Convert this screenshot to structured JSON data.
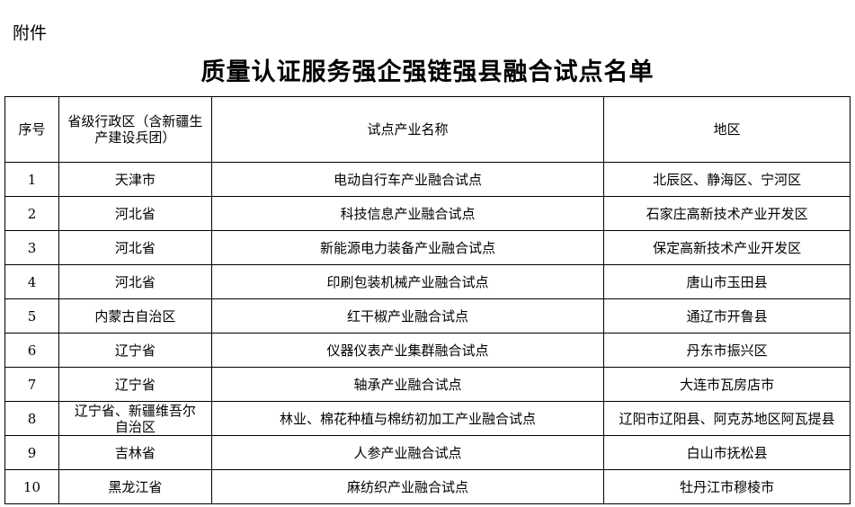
{
  "attachment_label": "附件",
  "title": "质量认证服务强企强链强县融合试点名单",
  "table": {
    "headers": [
      "序号",
      "省级行政区（含新疆生产建设兵团）",
      "试点产业名称",
      "地区"
    ],
    "rows": [
      [
        "1",
        "天津市",
        "电动自行车产业融合试点",
        "北辰区、静海区、宁河区"
      ],
      [
        "2",
        "河北省",
        "科技信息产业融合试点",
        "石家庄高新技术产业开发区"
      ],
      [
        "3",
        "河北省",
        "新能源电力装备产业融合试点",
        "保定高新技术产业开发区"
      ],
      [
        "4",
        "河北省",
        "印刷包装机械产业融合试点",
        "唐山市玉田县"
      ],
      [
        "5",
        "内蒙古自治区",
        "红干椒产业融合试点",
        "通辽市开鲁县"
      ],
      [
        "6",
        "辽宁省",
        "仪器仪表产业集群融合试点",
        "丹东市振兴区"
      ],
      [
        "7",
        "辽宁省",
        "轴承产业融合试点",
        "大连市瓦房店市"
      ],
      [
        "8",
        "辽宁省、新疆维吾尔自治区",
        "林业、棉花种植与棉纺初加工产业融合试点",
        "辽阳市辽阳县、阿克苏地区阿瓦提县"
      ],
      [
        "9",
        "吉林省",
        "人参产业融合试点",
        "白山市抚松县"
      ],
      [
        "10",
        "黑龙江省",
        "麻纺织产业融合试点",
        "牡丹江市穆棱市"
      ]
    ]
  }
}
